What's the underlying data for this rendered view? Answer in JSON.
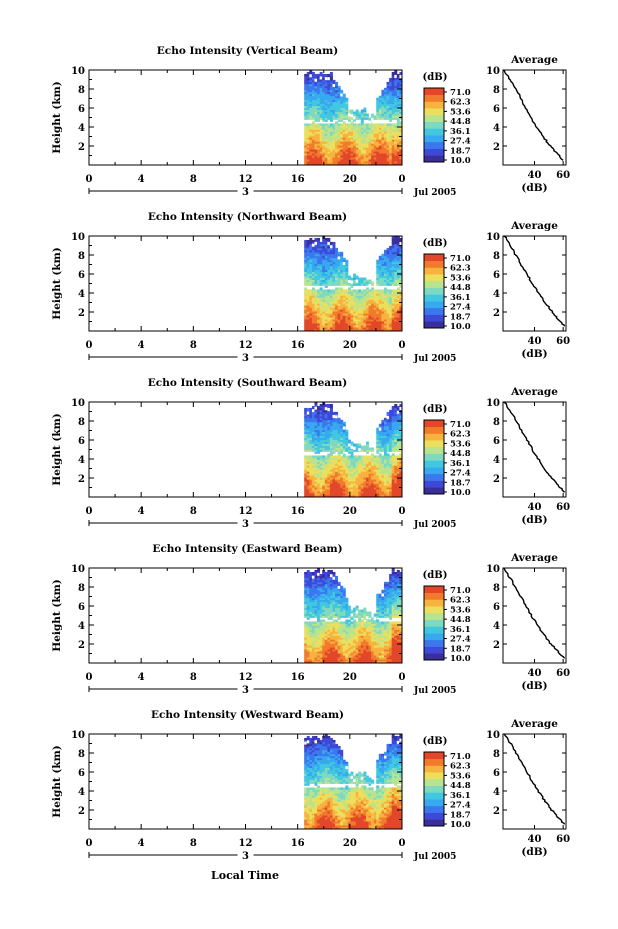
{
  "footer": {
    "xlabel": "Local Time"
  },
  "colorbar": {
    "unit": "(dB)",
    "labels": [
      "71.0",
      "62.3",
      "53.6",
      "44.8",
      "36.1",
      "27.4",
      "18.7",
      "10.0"
    ]
  },
  "colors": {
    "scale": [
      "#3a2f9a",
      "#3f49d8",
      "#3b78ee",
      "#38a8ef",
      "#41c8e0",
      "#7ed9c1",
      "#b8e38f",
      "#ecdf5d",
      "#f8b23e",
      "#f27a2d",
      "#e2472a"
    ]
  },
  "chart_data": [
    {
      "type": "heatmap",
      "title": "Echo Intensity (Vertical Beam)",
      "ylabel": "Height (km)",
      "yticks": [
        "2",
        "4",
        "6",
        "8",
        "10"
      ],
      "ylim": [
        0,
        10
      ],
      "xticks": [
        "0",
        "4",
        "8",
        "12",
        "16",
        "20",
        "0"
      ],
      "day_label": "3",
      "date_label": "Jul 2005",
      "data_start_hour": 16.5,
      "profile": {
        "title": "Average",
        "xlabel": "(dB)",
        "xticks": [
          "40",
          "60"
        ],
        "yticks": [
          "2",
          "4",
          "6",
          "8",
          "10"
        ],
        "x": [
          19,
          21,
          24,
          27,
          30,
          32,
          35,
          39,
          42,
          45,
          48,
          51,
          54,
          57,
          60
        ],
        "y": [
          10,
          9.4,
          8.8,
          8.0,
          7.2,
          6.4,
          5.6,
          4.6,
          3.9,
          3.2,
          2.6,
          2.0,
          1.5,
          1.0,
          0.5
        ]
      }
    },
    {
      "type": "heatmap",
      "title": "Echo Intensity (Northward Beam)",
      "ylabel": "Height (km)",
      "yticks": [
        "2",
        "4",
        "6",
        "8",
        "10"
      ],
      "ylim": [
        0,
        10
      ],
      "xticks": [
        "0",
        "4",
        "8",
        "12",
        "16",
        "20",
        "0"
      ],
      "day_label": "3",
      "date_label": "Jul 2005",
      "data_start_hour": 16.5,
      "profile": {
        "title": "Average",
        "xlabel": "(dB)",
        "xticks": [
          "40",
          "60"
        ],
        "yticks": [
          "2",
          "4",
          "6",
          "8",
          "10"
        ],
        "x": [
          19,
          22,
          25,
          28,
          31,
          34,
          37,
          40,
          43,
          46,
          49,
          52,
          55,
          58,
          61
        ],
        "y": [
          10,
          9.3,
          8.5,
          7.7,
          6.9,
          6.1,
          5.4,
          4.7,
          4.0,
          3.3,
          2.7,
          2.1,
          1.5,
          1.0,
          0.5
        ]
      }
    },
    {
      "type": "heatmap",
      "title": "Echo Intensity (Southward Beam)",
      "ylabel": "Height (km)",
      "yticks": [
        "2",
        "4",
        "6",
        "8",
        "10"
      ],
      "ylim": [
        0,
        10
      ],
      "xticks": [
        "0",
        "4",
        "8",
        "12",
        "16",
        "20",
        "0"
      ],
      "day_label": "3",
      "date_label": "Jul 2005",
      "data_start_hour": 16.5,
      "profile": {
        "title": "Average",
        "xlabel": "(dB)",
        "xticks": [
          "40",
          "60"
        ],
        "yticks": [
          "2",
          "4",
          "6",
          "8",
          "10"
        ],
        "x": [
          19,
          22,
          25,
          28,
          31,
          34,
          37,
          40,
          43,
          46,
          49,
          52,
          55,
          58,
          61
        ],
        "y": [
          10,
          9.3,
          8.6,
          7.8,
          7.0,
          6.2,
          5.4,
          4.6,
          3.9,
          3.2,
          2.6,
          2.0,
          1.5,
          1.0,
          0.5
        ]
      }
    },
    {
      "type": "heatmap",
      "title": "Echo Intensity (Eastward Beam)",
      "ylabel": "Height (km)",
      "yticks": [
        "2",
        "4",
        "6",
        "8",
        "10"
      ],
      "ylim": [
        0,
        10
      ],
      "xticks": [
        "0",
        "4",
        "8",
        "12",
        "16",
        "20",
        "0"
      ],
      "day_label": "3",
      "date_label": "Jul 2005",
      "data_start_hour": 16.5,
      "profile": {
        "title": "Average",
        "xlabel": "(dB)",
        "xticks": [
          "40",
          "60"
        ],
        "yticks": [
          "2",
          "4",
          "6",
          "8",
          "10"
        ],
        "x": [
          19,
          21,
          24,
          27,
          30,
          33,
          36,
          39,
          42,
          45,
          48,
          51,
          54,
          57,
          61
        ],
        "y": [
          10,
          9.4,
          8.7,
          7.9,
          7.1,
          6.3,
          5.5,
          4.7,
          4.0,
          3.3,
          2.7,
          2.1,
          1.6,
          1.1,
          0.5
        ]
      }
    },
    {
      "type": "heatmap",
      "title": "Echo Intensity (Westward Beam)",
      "ylabel": "Height (km)",
      "yticks": [
        "2",
        "4",
        "6",
        "8",
        "10"
      ],
      "ylim": [
        0,
        10
      ],
      "xticks": [
        "0",
        "4",
        "8",
        "12",
        "16",
        "20",
        "0"
      ],
      "day_label": "3",
      "date_label": "Jul 2005",
      "data_start_hour": 16.5,
      "profile": {
        "title": "Average",
        "xlabel": "(dB)",
        "xticks": [
          "40",
          "60"
        ],
        "yticks": [
          "2",
          "4",
          "6",
          "8",
          "10"
        ],
        "x": [
          19,
          22,
          25,
          28,
          31,
          34,
          37,
          40,
          43,
          46,
          49,
          52,
          55,
          58,
          61
        ],
        "y": [
          10,
          9.3,
          8.6,
          7.8,
          7.0,
          6.2,
          5.4,
          4.6,
          3.9,
          3.2,
          2.6,
          2.0,
          1.5,
          1.0,
          0.5
        ]
      }
    }
  ]
}
